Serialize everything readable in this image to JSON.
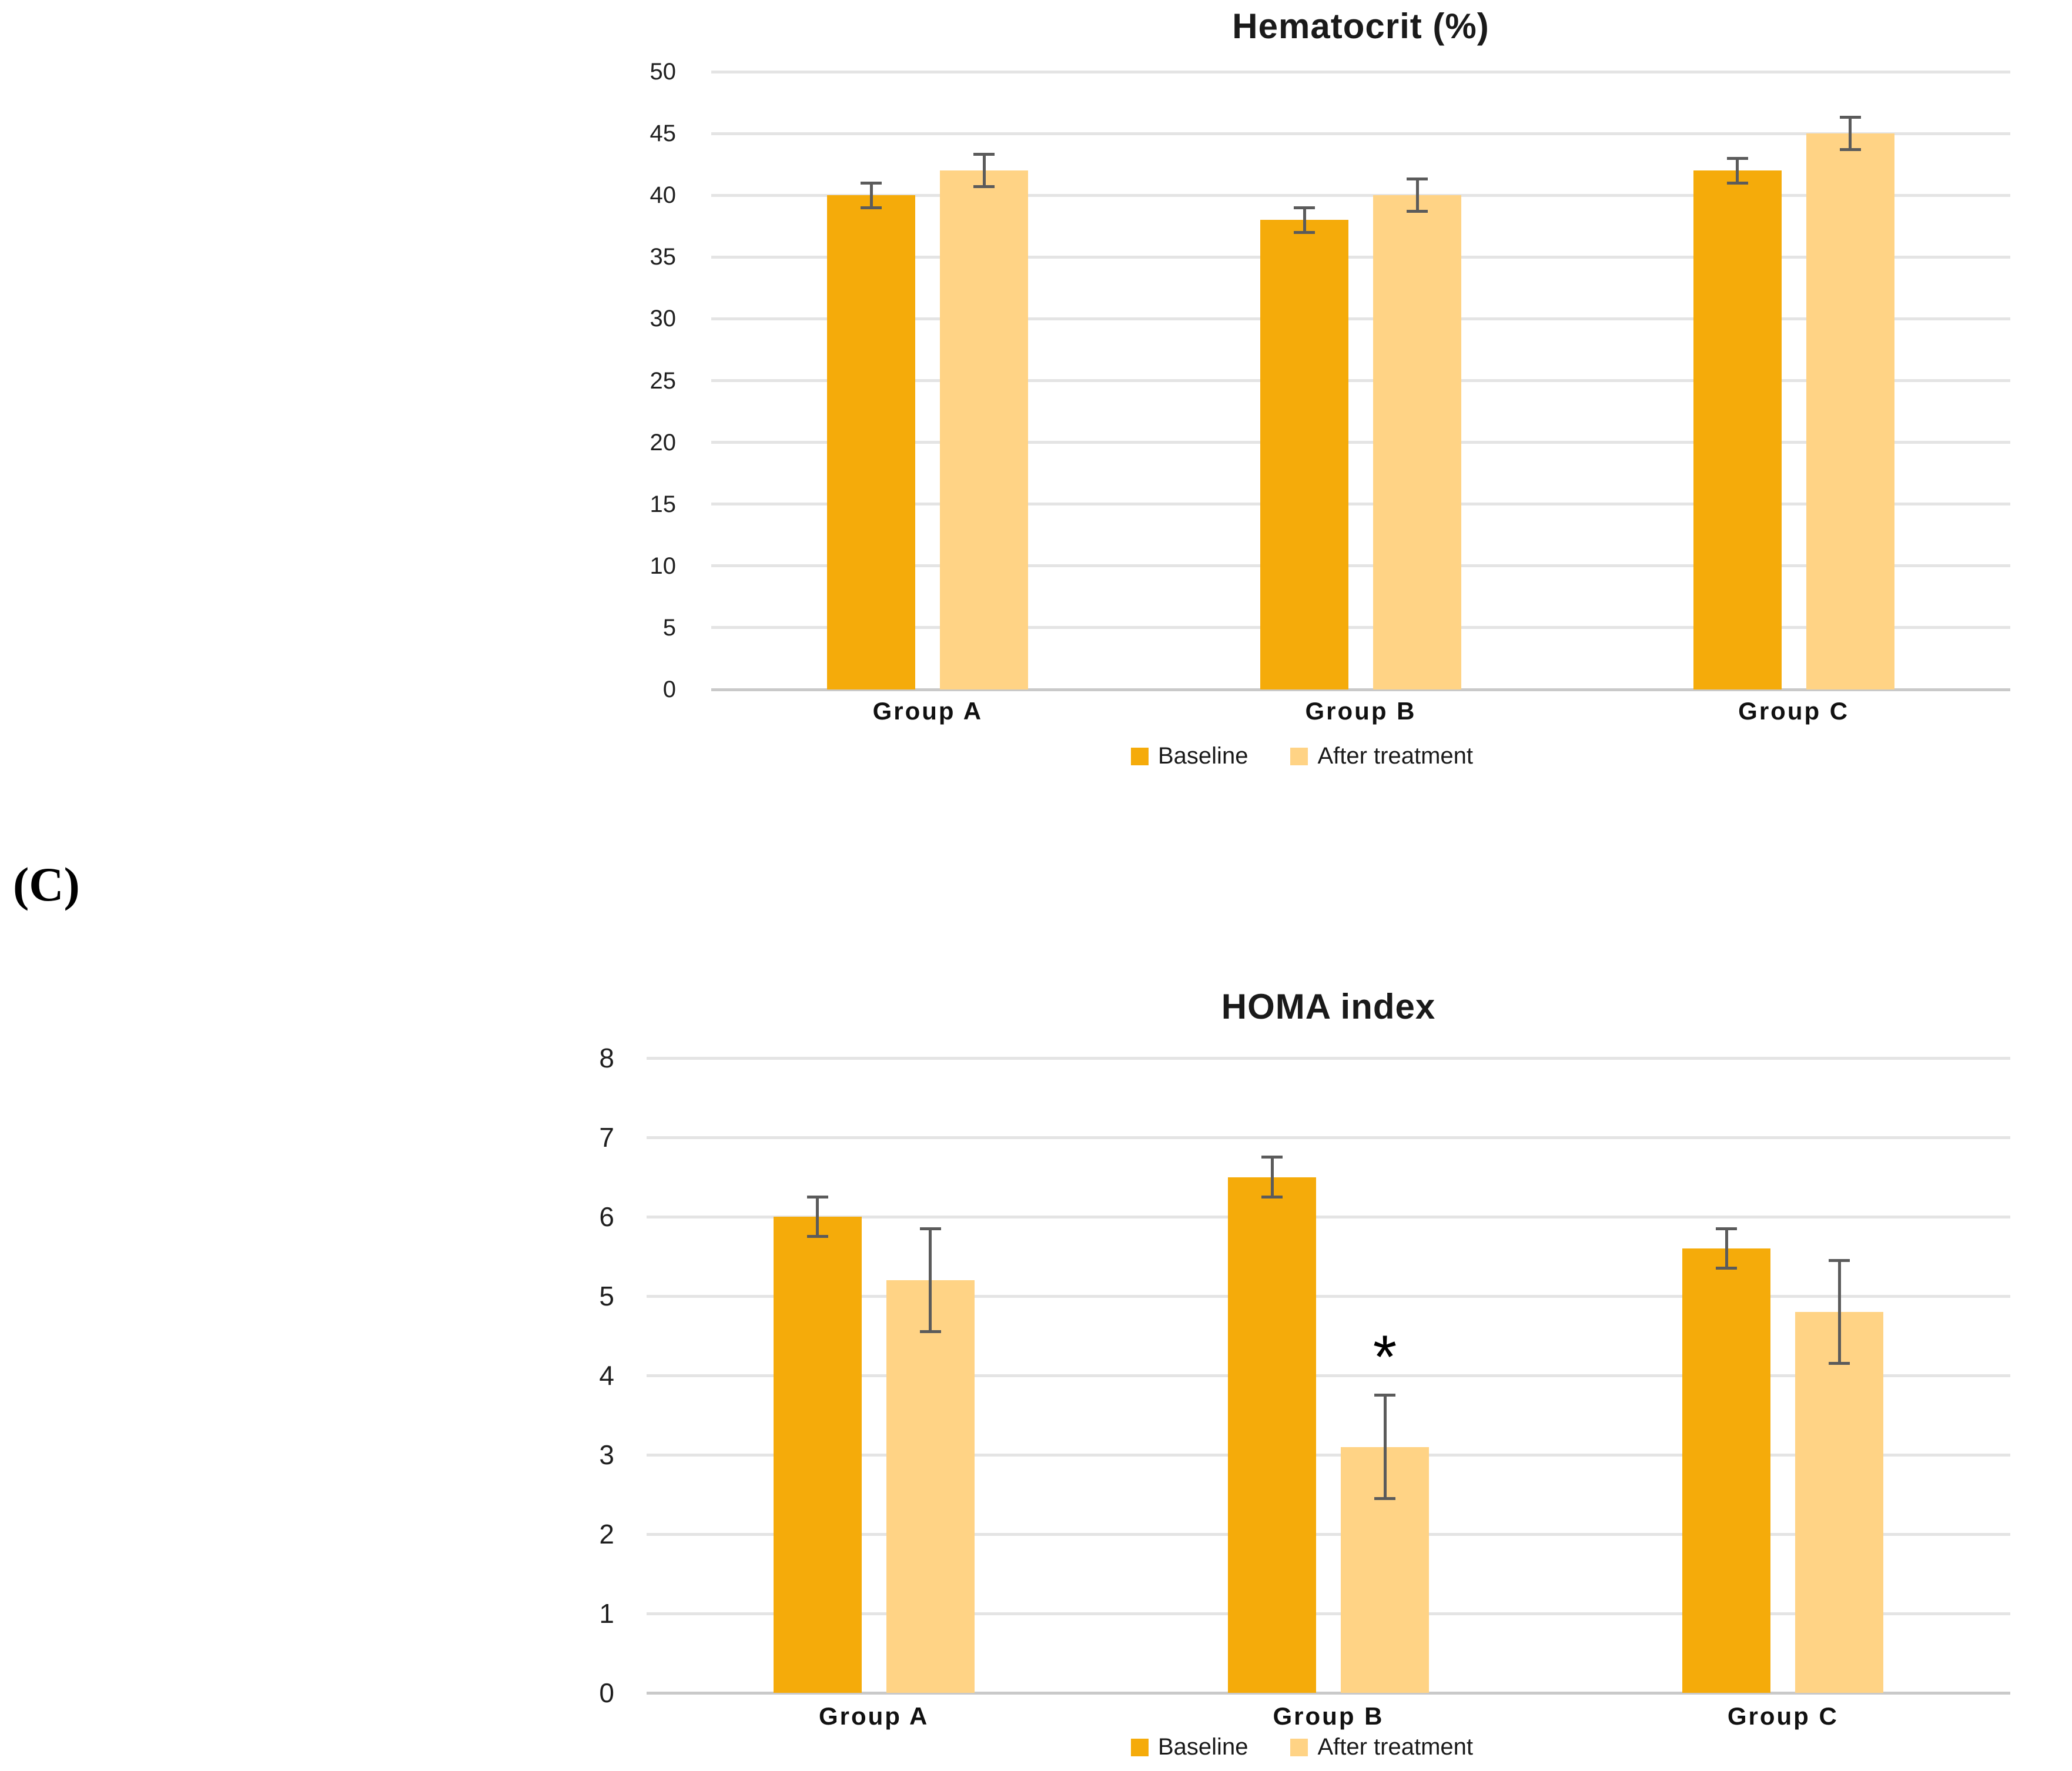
{
  "panel_label": "(C)",
  "colors": {
    "baseline_bar": "#F5AB0A",
    "after_treatment_bar": "#FFD385",
    "error_bar": "#5B5B5B",
    "gridline": "#E4E4E4",
    "axis_line": "#C9C9C9",
    "text": "#1A1A1A"
  },
  "chart_data": [
    {
      "id": "hematocrit",
      "type": "bar",
      "title": "Hematocrit (%)",
      "categories": [
        "Group A",
        "Group B",
        "Group C"
      ],
      "series": [
        {
          "name": "Baseline",
          "color": "#F5AB0A",
          "values": [
            40,
            38,
            42
          ],
          "error_bars": [
            1,
            1,
            1
          ]
        },
        {
          "name": "After treatment",
          "color": "#FFD385",
          "values": [
            42,
            40,
            45
          ],
          "error_bars": [
            1.3,
            1.3,
            1.3
          ]
        }
      ],
      "ylim": [
        0,
        50
      ],
      "ytick_step": 5,
      "grid": true,
      "legend_position": "bottom",
      "annotations": []
    },
    {
      "id": "homa",
      "type": "bar",
      "title": "HOMA index",
      "categories": [
        "Group A",
        "Group B",
        "Group C"
      ],
      "series": [
        {
          "name": "Baseline",
          "color": "#F5AB0A",
          "values": [
            6,
            6.5,
            5.6
          ],
          "error_bars": [
            0.25,
            0.25,
            0.25
          ]
        },
        {
          "name": "After treatment",
          "color": "#FFD385",
          "values": [
            5.2,
            3.1,
            4.8
          ],
          "error_bars": [
            0.65,
            0.65,
            0.65
          ]
        }
      ],
      "ylim": [
        0,
        8
      ],
      "ytick_step": 1,
      "grid": true,
      "legend_position": "bottom",
      "annotations": [
        {
          "text": "*",
          "category": "Group B",
          "series": "After treatment"
        }
      ]
    }
  ]
}
